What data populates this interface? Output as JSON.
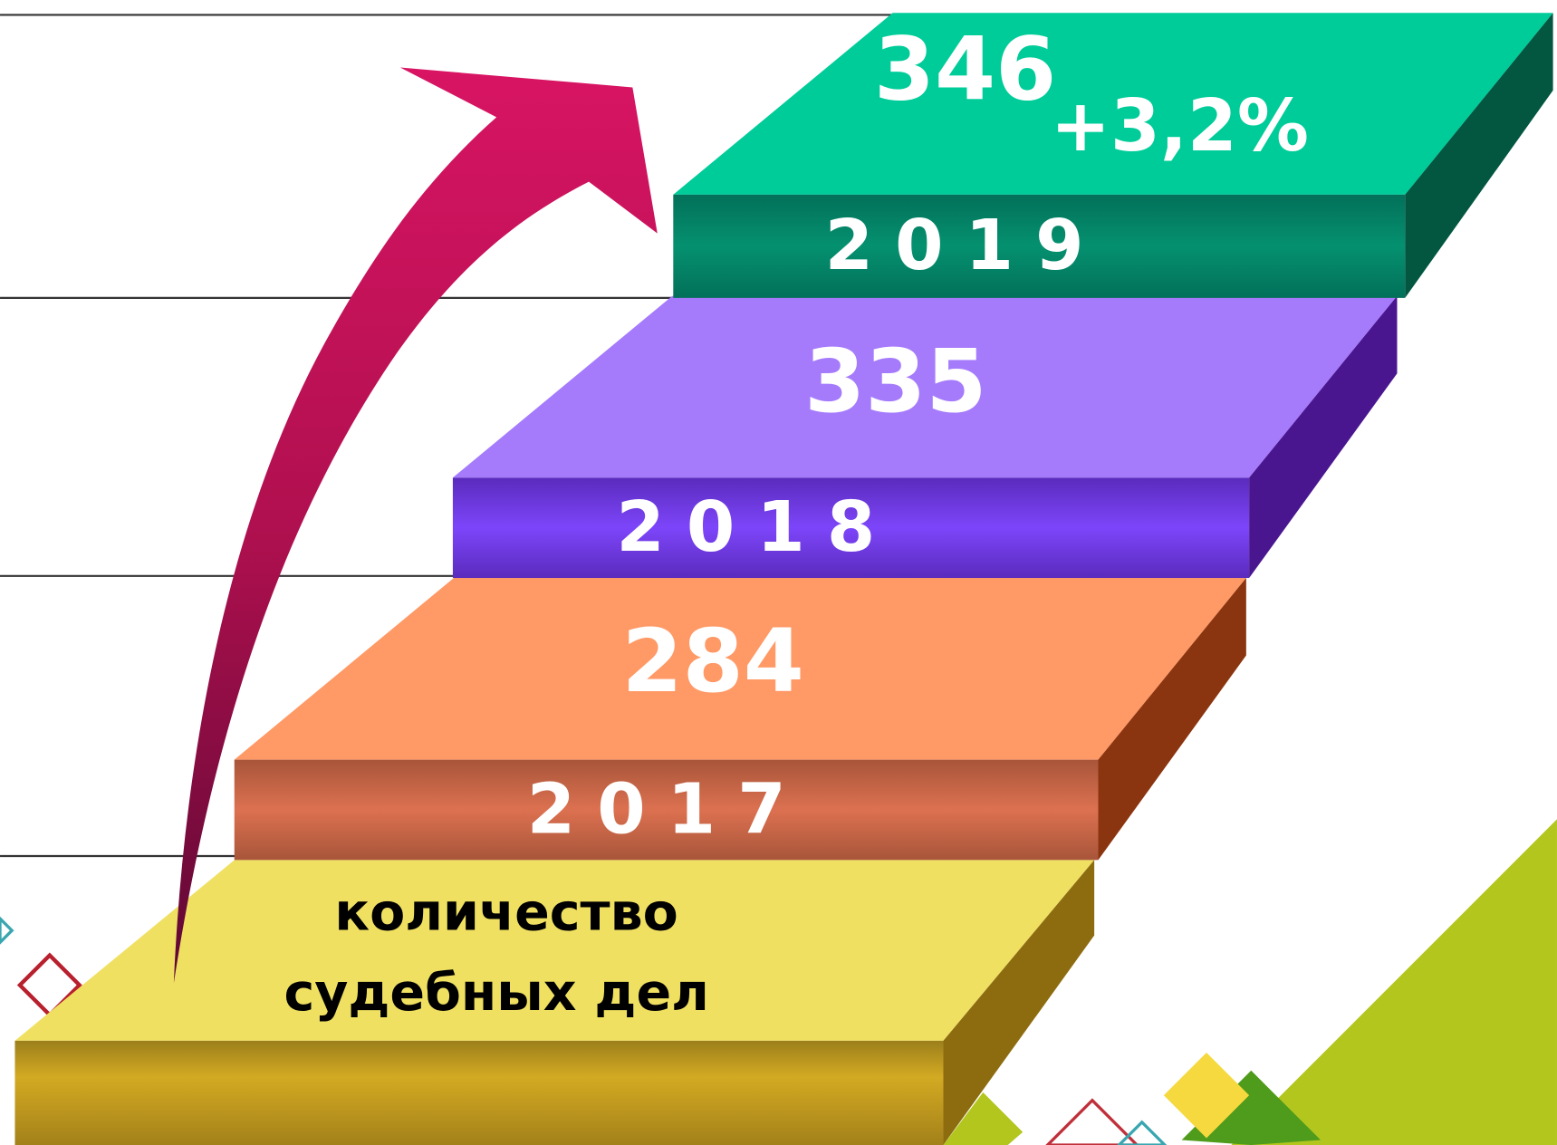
{
  "chart_data": {
    "type": "staircase",
    "categories": [
      "2017",
      "2018",
      "2019"
    ],
    "values": [
      284,
      335,
      346
    ],
    "colors": [
      "#ff9966",
      "#a57bfc",
      "#00cc99"
    ],
    "label_lines": [
      "количество",
      "судебных дел"
    ],
    "annotation": "+3,2%"
  }
}
